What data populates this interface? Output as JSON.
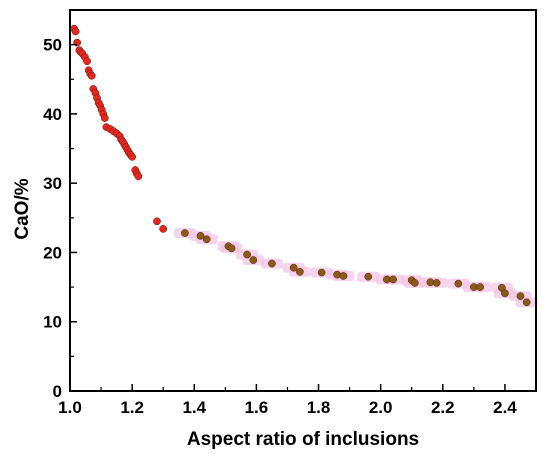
{
  "chart_data": {
    "type": "scatter",
    "title": "",
    "xlabel": "Aspect ratio of inclusions",
    "ylabel": "CaO/%",
    "xlim": [
      1.0,
      2.5
    ],
    "ylim": [
      0,
      55
    ],
    "xticks": [
      "1.0",
      "1.2",
      "1.4",
      "1.6",
      "1.8",
      "2.0",
      "2.2",
      "2.4"
    ],
    "yticks": [
      "0",
      "10",
      "20",
      "30",
      "40",
      "50"
    ],
    "grid": false,
    "legend": "none",
    "colors": {
      "red_points": "#e8261d",
      "brown_points": "#8a5a19",
      "halo": "#f3c6e4"
    },
    "series": [
      {
        "color_key": "red_points",
        "x": [
          1.013,
          1.018,
          1.023,
          1.03,
          1.035,
          1.04,
          1.048,
          1.055,
          1.06,
          1.065,
          1.07,
          1.075,
          1.082,
          1.087,
          1.092,
          1.097,
          1.102,
          1.107,
          1.112,
          1.117,
          1.13,
          1.14,
          1.15,
          1.16,
          1.165,
          1.17,
          1.175,
          1.18,
          1.185,
          1.19,
          1.195,
          1.2,
          1.21,
          1.215,
          1.22,
          1.28,
          1.3
        ],
        "y": [
          52.3,
          51.9,
          50.3,
          49.2,
          48.9,
          48.7,
          48.2,
          47.6,
          46.3,
          45.8,
          45.5,
          43.6,
          43.0,
          42.3,
          41.6,
          41.2,
          40.6,
          40.0,
          39.4,
          38.1,
          37.8,
          37.5,
          37.2,
          36.8,
          36.3,
          36.0,
          35.6,
          35.2,
          34.8,
          34.4,
          34.1,
          33.8,
          31.9,
          31.4,
          31.0,
          24.5,
          23.4
        ]
      },
      {
        "color_key": "brown_points",
        "x": [
          1.37,
          1.42,
          1.44,
          1.51,
          1.52,
          1.57,
          1.59,
          1.65,
          1.72,
          1.74,
          1.81,
          1.86,
          1.88,
          1.96,
          2.02,
          2.04,
          2.1,
          2.11,
          2.16,
          2.18,
          2.25,
          2.3,
          2.32,
          2.39,
          2.4,
          2.45,
          2.47
        ],
        "y": [
          22.8,
          22.4,
          21.9,
          20.9,
          20.6,
          19.7,
          18.9,
          18.4,
          17.8,
          17.2,
          17.1,
          16.8,
          16.6,
          16.5,
          16.1,
          16.1,
          16.0,
          15.6,
          15.7,
          15.6,
          15.5,
          15.0,
          15.0,
          14.9,
          14.1,
          13.7,
          12.8
        ]
      }
    ]
  }
}
